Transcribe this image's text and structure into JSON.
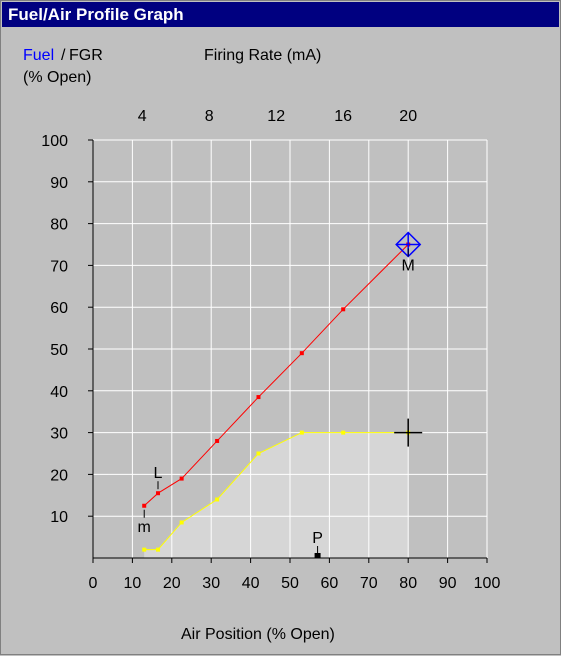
{
  "window": {
    "title": "Fuel/Air Profile Graph"
  },
  "header": {
    "fuel_label": "Fuel",
    "separator": "/",
    "fgr_label": "FGR",
    "open_label": "(% Open)",
    "top_axis_title": "Firing Rate (mA)"
  },
  "colors": {
    "fuel": "#ff0000",
    "fgr": "#ffff00",
    "grid": "#ffffff",
    "plot_bg": "#c0c0c0",
    "marker": "#0000ff"
  },
  "chart_data": {
    "type": "line",
    "title": "Fuel/Air Profile Graph",
    "xlabel": "Air Position (% Open)",
    "ylabel": "(% Open)",
    "xlim": [
      0,
      100
    ],
    "ylim": [
      0,
      100
    ],
    "xticks": [
      0,
      10,
      20,
      30,
      40,
      50,
      60,
      70,
      80,
      90,
      100
    ],
    "yticks": [
      10,
      20,
      30,
      40,
      50,
      60,
      70,
      80,
      90,
      100
    ],
    "top_axis": {
      "title": "Firing Rate (mA)",
      "ticks": [
        {
          "label": "4",
          "x": 12.5
        },
        {
          "label": "8",
          "x": 29.5
        },
        {
          "label": "12",
          "x": 46.5
        },
        {
          "label": "16",
          "x": 63.5
        },
        {
          "label": "20",
          "x": 80
        }
      ]
    },
    "grid": true,
    "series": [
      {
        "name": "Fuel",
        "color": "#ff0000",
        "points": [
          [
            13,
            12.5
          ],
          [
            16.5,
            15.5
          ],
          [
            22.5,
            19
          ],
          [
            31.5,
            28
          ],
          [
            42,
            38.5
          ],
          [
            53,
            49
          ],
          [
            63.5,
            59.5
          ],
          [
            80,
            75
          ]
        ]
      },
      {
        "name": "FGR",
        "color": "#ffff00",
        "points": [
          [
            13,
            2
          ],
          [
            16.5,
            2
          ],
          [
            22.5,
            8.5
          ],
          [
            31.5,
            14
          ],
          [
            42,
            25
          ],
          [
            53,
            30
          ],
          [
            63.5,
            30
          ],
          [
            80,
            30
          ]
        ]
      }
    ],
    "markers": [
      {
        "label": "L",
        "x": 16.5,
        "y": 15.5,
        "position": "above"
      },
      {
        "label": "m",
        "x": 13,
        "y": 12.5,
        "position": "below"
      },
      {
        "label": "M",
        "x": 80,
        "y": 75,
        "position": "below"
      },
      {
        "label": "P",
        "x": 57,
        "y": 0,
        "position": "above"
      }
    ]
  }
}
